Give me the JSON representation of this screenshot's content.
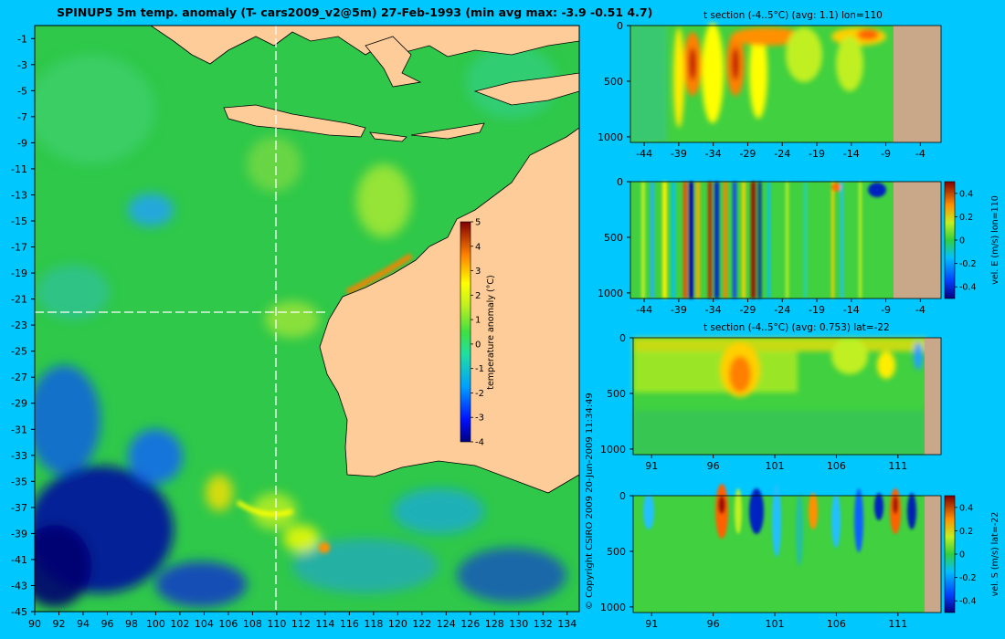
{
  "chart_data": [
    {
      "type": "heatmap",
      "title": "SPINUP5 5m temp. anomaly (T- cars2009_v2@5m) 27-Feb-1993 (min avg max: -3.9 -0.51 4.7)",
      "xlim": [
        90,
        135
      ],
      "ylim": [
        -45,
        0
      ],
      "x_ticks": [
        "90",
        "92",
        "94",
        "96",
        "98",
        "100",
        "102",
        "104",
        "106",
        "108",
        "110",
        "112",
        "114",
        "116",
        "118",
        "120",
        "122",
        "124",
        "126",
        "128",
        "130",
        "132",
        "134"
      ],
      "y_ticks": [
        "-1",
        "-3",
        "-5",
        "-7",
        "-9",
        "-11",
        "-13",
        "-15",
        "-17",
        "-19",
        "-21",
        "-23",
        "-25",
        "-27",
        "-29",
        "-31",
        "-33",
        "-35",
        "-37",
        "-39",
        "-41",
        "-43",
        "-45"
      ],
      "section_lines": {
        "lon": 110,
        "lat": -22
      },
      "colorbar": {
        "label": "temperature anomaly (°C)",
        "range": [
          -4,
          5
        ],
        "ticks": [
          "5",
          "4",
          "3",
          "2",
          "1",
          "0",
          "-1",
          "-2",
          "-3",
          "-4"
        ]
      },
      "colors": {
        "land": "#fdcc98",
        "ocean_base": "#2fc84a",
        "section_line": "#ffffff"
      }
    },
    {
      "type": "heatmap",
      "title": "t section (-4..5°C) (avg: 1.1) lon=110",
      "x_ticks": [
        "-44",
        "-39",
        "-34",
        "-29",
        "-24",
        "-19",
        "-14",
        "-9",
        "-4"
      ],
      "y_ticks": [
        "0",
        "500",
        "1000"
      ]
    },
    {
      "type": "heatmap",
      "title": "",
      "x_ticks": [
        "-44",
        "-39",
        "-34",
        "-29",
        "-24",
        "-19",
        "-14",
        "-9",
        "-4"
      ],
      "y_ticks": [
        "0",
        "500",
        "1000"
      ],
      "colorbar": {
        "label": "vel. E (m/s) lon=110",
        "ticks": [
          "0.4",
          "0.2",
          "0",
          "-0.2",
          "-0.4"
        ]
      }
    },
    {
      "type": "heatmap",
      "title": "t section (-4..5°C) (avg: 0.753) lat=-22",
      "x_ticks": [
        "91",
        "96",
        "101",
        "106",
        "111"
      ],
      "y_ticks": [
        "0",
        "500",
        "1000"
      ]
    },
    {
      "type": "heatmap",
      "title": "",
      "x_ticks": [
        "91",
        "96",
        "101",
        "106",
        "111"
      ],
      "y_ticks": [
        "0",
        "500",
        "1000"
      ],
      "colorbar": {
        "label": "vel. S (m/s) lat=-22",
        "ticks": [
          "0.4",
          "0.2",
          "0",
          "-0.2",
          "-0.4"
        ]
      }
    }
  ],
  "copyright": "© Copyright CSIRO 2009  20-Jun-2009 11:34:49"
}
